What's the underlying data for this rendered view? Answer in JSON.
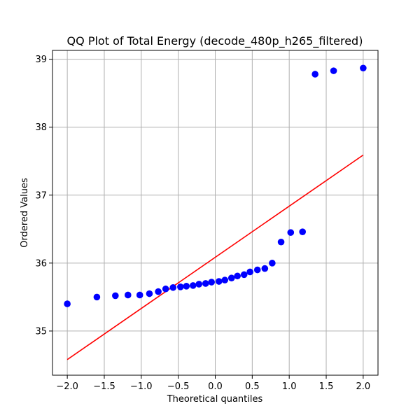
{
  "chart_data": {
    "type": "scatter",
    "title": "QQ Plot of Total Energy (decode_480p_h265_filtered)",
    "xlabel": "Theoretical quantiles",
    "ylabel": "Ordered Values",
    "xlim": [
      -2.2,
      2.2
    ],
    "ylim": [
      34.35,
      39.13
    ],
    "xticks": [
      -2.0,
      -1.5,
      -1.0,
      -0.5,
      0.0,
      0.5,
      1.0,
      1.5,
      2.0
    ],
    "xtick_labels": [
      "−2.0",
      "−1.5",
      "−1.0",
      "−0.5",
      "0.0",
      "0.5",
      "1.0",
      "1.5",
      "2.0"
    ],
    "yticks": [
      35,
      36,
      37,
      38,
      39
    ],
    "ytick_labels": [
      "35",
      "36",
      "37",
      "38",
      "39"
    ],
    "grid": true,
    "points": {
      "color": "#0000ff",
      "x": [
        -2.0,
        -1.6,
        -1.35,
        -1.18,
        -1.02,
        -0.89,
        -0.77,
        -0.67,
        -0.57,
        -0.47,
        -0.39,
        -0.3,
        -0.22,
        -0.13,
        -0.05,
        0.05,
        0.13,
        0.22,
        0.3,
        0.39,
        0.47,
        0.57,
        0.67,
        0.77,
        0.89,
        1.02,
        1.18,
        1.35,
        1.6,
        2.0
      ],
      "y": [
        35.4,
        35.5,
        35.52,
        35.53,
        35.53,
        35.55,
        35.58,
        35.62,
        35.64,
        35.65,
        35.66,
        35.67,
        35.69,
        35.7,
        35.72,
        35.73,
        35.75,
        35.78,
        35.81,
        35.83,
        35.87,
        35.9,
        35.92,
        36.0,
        36.31,
        36.45,
        36.46,
        38.78,
        38.83,
        38.87
      ]
    },
    "fit_line": {
      "color": "#ff0000",
      "x": [
        -2.0,
        2.0
      ],
      "y": [
        34.58,
        37.59
      ]
    }
  }
}
